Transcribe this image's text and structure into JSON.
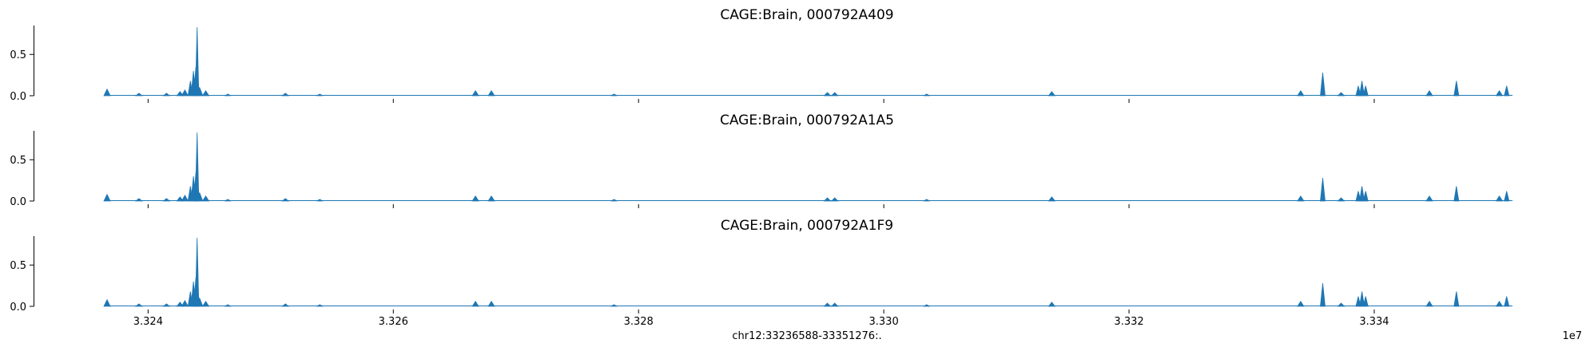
{
  "chart_data": {
    "type": "area",
    "colors": {
      "fill": "#1f77b4",
      "axis": "#000000",
      "background": "#ffffff"
    },
    "shared_x": {
      "label": "chr12:33236588-33351276:.",
      "lim": [
        33236588,
        33351276
      ],
      "ticks": [
        33240000,
        33260000,
        33280000,
        33300000,
        33320000,
        33340000
      ],
      "tick_labels": [
        "3.324",
        "3.326",
        "3.328",
        "3.330",
        "3.332",
        "3.334"
      ],
      "offset_text": "1e7"
    },
    "grid": false,
    "panels": [
      {
        "title": "CAGE:Brain, 000792A409",
        "ylim": [
          0,
          0.85
        ],
        "yticks": [
          0.0,
          0.5
        ],
        "ytick_labels": [
          "0.0",
          "0.5"
        ],
        "peaks": [
          {
            "x": 33236650,
            "y": 0.08
          },
          {
            "x": 33239250,
            "y": 0.03
          },
          {
            "x": 33241500,
            "y": 0.03
          },
          {
            "x": 33242600,
            "y": 0.05
          },
          {
            "x": 33243000,
            "y": 0.07
          },
          {
            "x": 33243450,
            "y": 0.18
          },
          {
            "x": 33243700,
            "y": 0.3
          },
          {
            "x": 33243900,
            "y": 0.35
          },
          {
            "x": 33244000,
            "y": 0.83
          },
          {
            "x": 33244200,
            "y": 0.1
          },
          {
            "x": 33244700,
            "y": 0.06
          },
          {
            "x": 33246500,
            "y": 0.02
          },
          {
            "x": 33251200,
            "y": 0.03
          },
          {
            "x": 33254000,
            "y": 0.02
          },
          {
            "x": 33266700,
            "y": 0.06
          },
          {
            "x": 33268000,
            "y": 0.06
          },
          {
            "x": 33278000,
            "y": 0.02
          },
          {
            "x": 33295400,
            "y": 0.04
          },
          {
            "x": 33296000,
            "y": 0.04
          },
          {
            "x": 33303500,
            "y": 0.02
          },
          {
            "x": 33313700,
            "y": 0.05
          },
          {
            "x": 33334000,
            "y": 0.06
          },
          {
            "x": 33335800,
            "y": 0.28
          },
          {
            "x": 33337300,
            "y": 0.04
          },
          {
            "x": 33338700,
            "y": 0.12
          },
          {
            "x": 33339000,
            "y": 0.18
          },
          {
            "x": 33339300,
            "y": 0.12
          },
          {
            "x": 33344500,
            "y": 0.06
          },
          {
            "x": 33346700,
            "y": 0.18
          },
          {
            "x": 33350200,
            "y": 0.06
          },
          {
            "x": 33350800,
            "y": 0.12
          }
        ]
      },
      {
        "title": "CAGE:Brain, 000792A1A5",
        "ylim": [
          0,
          0.85
        ],
        "yticks": [
          0.0,
          0.5
        ],
        "ytick_labels": [
          "0.0",
          "0.5"
        ],
        "peaks": [
          {
            "x": 33236650,
            "y": 0.08
          },
          {
            "x": 33239250,
            "y": 0.03
          },
          {
            "x": 33241500,
            "y": 0.03
          },
          {
            "x": 33242600,
            "y": 0.05
          },
          {
            "x": 33243000,
            "y": 0.07
          },
          {
            "x": 33243450,
            "y": 0.18
          },
          {
            "x": 33243700,
            "y": 0.3
          },
          {
            "x": 33243900,
            "y": 0.35
          },
          {
            "x": 33244000,
            "y": 0.83
          },
          {
            "x": 33244200,
            "y": 0.1
          },
          {
            "x": 33244700,
            "y": 0.06
          },
          {
            "x": 33246500,
            "y": 0.02
          },
          {
            "x": 33251200,
            "y": 0.03
          },
          {
            "x": 33254000,
            "y": 0.02
          },
          {
            "x": 33266700,
            "y": 0.06
          },
          {
            "x": 33268000,
            "y": 0.06
          },
          {
            "x": 33278000,
            "y": 0.02
          },
          {
            "x": 33295400,
            "y": 0.04
          },
          {
            "x": 33296000,
            "y": 0.04
          },
          {
            "x": 33303500,
            "y": 0.02
          },
          {
            "x": 33313700,
            "y": 0.05
          },
          {
            "x": 33334000,
            "y": 0.06
          },
          {
            "x": 33335800,
            "y": 0.28
          },
          {
            "x": 33337300,
            "y": 0.04
          },
          {
            "x": 33338700,
            "y": 0.12
          },
          {
            "x": 33339000,
            "y": 0.18
          },
          {
            "x": 33339300,
            "y": 0.12
          },
          {
            "x": 33344500,
            "y": 0.06
          },
          {
            "x": 33346700,
            "y": 0.18
          },
          {
            "x": 33350200,
            "y": 0.06
          },
          {
            "x": 33350800,
            "y": 0.12
          }
        ]
      },
      {
        "title": "CAGE:Brain, 000792A1F9",
        "ylim": [
          0,
          0.85
        ],
        "yticks": [
          0.0,
          0.5
        ],
        "ytick_labels": [
          "0.0",
          "0.5"
        ],
        "peaks": [
          {
            "x": 33236650,
            "y": 0.08
          },
          {
            "x": 33239250,
            "y": 0.03
          },
          {
            "x": 33241500,
            "y": 0.03
          },
          {
            "x": 33242600,
            "y": 0.05
          },
          {
            "x": 33243000,
            "y": 0.07
          },
          {
            "x": 33243450,
            "y": 0.18
          },
          {
            "x": 33243700,
            "y": 0.3
          },
          {
            "x": 33243900,
            "y": 0.35
          },
          {
            "x": 33244000,
            "y": 0.83
          },
          {
            "x": 33244200,
            "y": 0.1
          },
          {
            "x": 33244700,
            "y": 0.06
          },
          {
            "x": 33246500,
            "y": 0.02
          },
          {
            "x": 33251200,
            "y": 0.03
          },
          {
            "x": 33254000,
            "y": 0.02
          },
          {
            "x": 33266700,
            "y": 0.06
          },
          {
            "x": 33268000,
            "y": 0.06
          },
          {
            "x": 33278000,
            "y": 0.02
          },
          {
            "x": 33295400,
            "y": 0.04
          },
          {
            "x": 33296000,
            "y": 0.04
          },
          {
            "x": 33303500,
            "y": 0.02
          },
          {
            "x": 33313700,
            "y": 0.05
          },
          {
            "x": 33334000,
            "y": 0.06
          },
          {
            "x": 33335800,
            "y": 0.28
          },
          {
            "x": 33337300,
            "y": 0.04
          },
          {
            "x": 33338700,
            "y": 0.12
          },
          {
            "x": 33339000,
            "y": 0.18
          },
          {
            "x": 33339300,
            "y": 0.12
          },
          {
            "x": 33344500,
            "y": 0.06
          },
          {
            "x": 33346700,
            "y": 0.18
          },
          {
            "x": 33350200,
            "y": 0.06
          },
          {
            "x": 33350800,
            "y": 0.12
          }
        ]
      }
    ]
  }
}
